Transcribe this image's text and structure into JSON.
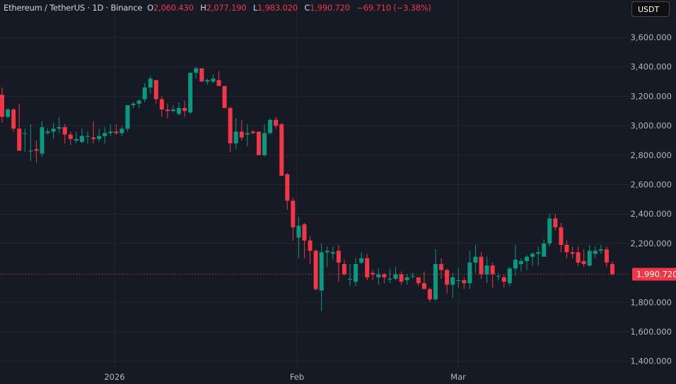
{
  "header": {
    "symbol": "Ethereum / TetherUS",
    "interval": "1D",
    "exchange": "Binance",
    "title": "Ethereum / TetherUS · 1D · Binance",
    "open_label": "O",
    "open": "2,060.430",
    "high_label": "H",
    "high": "2,077.190",
    "low_label": "L",
    "low": "1,983.020",
    "close_label": "C",
    "close": "1,990.720",
    "change": "−69.710 (−3.38%)"
  },
  "currency_button": "USDT",
  "last_price_label": "1,990.720",
  "colors": {
    "up": "#089981",
    "down": "#f23645",
    "background": "#161a25",
    "grid": "#232733",
    "text": "#b2b5be"
  },
  "chart_data": {
    "type": "candlestick",
    "title": "Ethereum / TetherUS · 1D · Binance",
    "xlabel": "",
    "ylabel": "USDT",
    "ylim": [
      1350,
      3700
    ],
    "yticks": [
      3600,
      3400,
      3200,
      3000,
      2800,
      2600,
      2400,
      2200,
      1800,
      1600,
      1400
    ],
    "ytick_labels": [
      "3,600.000",
      "3,400.000",
      "3,200.000",
      "3,000.000",
      "2,800.000",
      "2,600.000",
      "2,400.000",
      "2,200.000",
      "1,800.000",
      "1,600.000",
      "1,400.000"
    ],
    "xticks": [
      {
        "label": "2026",
        "x": 162
      },
      {
        "label": "Feb",
        "x": 420
      },
      {
        "label": "Mar",
        "x": 648
      }
    ],
    "last_price": 1990.72,
    "candles": [
      [
        3210,
        3260,
        3020,
        3060
      ],
      [
        3060,
        3120,
        3050,
        3110
      ],
      [
        3110,
        3120,
        2960,
        2980
      ],
      [
        2980,
        3150,
        2860,
        2830
      ],
      [
        2950,
        2980,
        2820,
        2950
      ],
      [
        2830,
        3010,
        2760,
        2830
      ],
      [
        2840,
        2900,
        2750,
        2830
      ],
      [
        2810,
        3030,
        2790,
        2990
      ],
      [
        2950,
        2980,
        2940,
        2960
      ],
      [
        2960,
        3020,
        2910,
        2980
      ],
      [
        2980,
        3060,
        2950,
        2990
      ],
      [
        2990,
        3010,
        2880,
        2940
      ],
      [
        2940,
        2960,
        2870,
        2910
      ],
      [
        2900,
        2960,
        2880,
        2910
      ],
      [
        2890,
        2980,
        2880,
        2930
      ],
      [
        2930,
        2960,
        2880,
        2930
      ],
      [
        2920,
        3030,
        2880,
        2910
      ],
      [
        2910,
        2980,
        2890,
        2930
      ],
      [
        2930,
        2990,
        2880,
        2950
      ],
      [
        2950,
        3010,
        2930,
        2960
      ],
      [
        2960,
        3010,
        2940,
        2950
      ],
      [
        2950,
        3000,
        2930,
        2980
      ],
      [
        2980,
        3050,
        2960,
        3140
      ],
      [
        3140,
        3160,
        3120,
        3150
      ],
      [
        3150,
        3180,
        3120,
        3170
      ],
      [
        3180,
        3290,
        3160,
        3260
      ],
      [
        3260,
        3340,
        3220,
        3320
      ],
      [
        3310,
        3300,
        3150,
        3180
      ],
      [
        3180,
        3200,
        3060,
        3110
      ],
      [
        3110,
        3150,
        3050,
        3100
      ],
      [
        3100,
        3140,
        3090,
        3110
      ],
      [
        3080,
        3160,
        3070,
        3120
      ],
      [
        3120,
        3170,
        3060,
        3100
      ],
      [
        3090,
        3360,
        3080,
        3360
      ],
      [
        3360,
        3400,
        3320,
        3390
      ],
      [
        3390,
        3380,
        3300,
        3300
      ],
      [
        3300,
        3320,
        3280,
        3310
      ],
      [
        3300,
        3350,
        3290,
        3320
      ],
      [
        3310,
        3370,
        3290,
        3270
      ],
      [
        3270,
        3270,
        3120,
        3120
      ],
      [
        3120,
        3130,
        2820,
        2880
      ],
      [
        2880,
        3050,
        2840,
        2960
      ],
      [
        2960,
        3040,
        2900,
        2920
      ],
      [
        2940,
        3010,
        2860,
        2950
      ],
      [
        2960,
        2970,
        2940,
        2950
      ],
      [
        2960,
        2950,
        2810,
        2800
      ],
      [
        2800,
        3010,
        2790,
        2950
      ],
      [
        2950,
        3050,
        2940,
        3040
      ],
      [
        3040,
        3060,
        2980,
        3000
      ],
      [
        3010,
        3020,
        2660,
        2660
      ],
      [
        2670,
        2680,
        2430,
        2490
      ],
      [
        2490,
        2510,
        2220,
        2310
      ],
      [
        2240,
        2380,
        2100,
        2320
      ],
      [
        2330,
        2340,
        2100,
        2220
      ],
      [
        2220,
        2250,
        2060,
        2150
      ],
      [
        2150,
        2160,
        1880,
        1890
      ],
      [
        1880,
        2200,
        1740,
        2140
      ],
      [
        2140,
        2180,
        2040,
        2150
      ],
      [
        2130,
        2180,
        2090,
        2140
      ],
      [
        2150,
        2190,
        1940,
        2070
      ],
      [
        2060,
        2090,
        1980,
        1990
      ],
      [
        1960,
        2060,
        1910,
        1960
      ],
      [
        1940,
        2100,
        1910,
        2060
      ],
      [
        2070,
        2140,
        2060,
        2100
      ],
      [
        2100,
        2130,
        1950,
        1970
      ],
      [
        2000,
        2020,
        1950,
        1990
      ],
      [
        1970,
        2030,
        1920,
        1990
      ],
      [
        1990,
        2000,
        1930,
        1970
      ],
      [
        1960,
        2030,
        1930,
        1960
      ],
      [
        1960,
        2040,
        1950,
        1990
      ],
      [
        1990,
        2010,
        1920,
        1940
      ],
      [
        1950,
        1990,
        1920,
        1970
      ],
      [
        1980,
        2000,
        1960,
        1980
      ],
      [
        1970,
        1970,
        1910,
        1930
      ],
      [
        1930,
        2010,
        1890,
        1890
      ],
      [
        1890,
        1900,
        1800,
        1820
      ],
      [
        1820,
        2160,
        1810,
        2060
      ],
      [
        2060,
        2100,
        1960,
        2020
      ],
      [
        2020,
        2030,
        1860,
        1920
      ],
      [
        1920,
        2000,
        1830,
        1970
      ],
      [
        1950,
        2030,
        1900,
        1950
      ],
      [
        1950,
        1970,
        1890,
        1930
      ],
      [
        1930,
        2150,
        1890,
        2070
      ],
      [
        2070,
        2190,
        2000,
        2110
      ],
      [
        2110,
        2140,
        1960,
        1990
      ],
      [
        1990,
        2110,
        1930,
        2050
      ],
      [
        2050,
        2070,
        1900,
        1990
      ],
      [
        1980,
        2000,
        1950,
        1980
      ],
      [
        1970,
        1990,
        1900,
        1940
      ],
      [
        1930,
        2040,
        1910,
        2030
      ],
      [
        2030,
        2190,
        1980,
        2090
      ],
      [
        2060,
        2100,
        2010,
        2080
      ],
      [
        2080,
        2120,
        2020,
        2110
      ],
      [
        2110,
        2140,
        2050,
        2130
      ],
      [
        2130,
        2180,
        2050,
        2140
      ],
      [
        2110,
        2230,
        2110,
        2200
      ],
      [
        2200,
        2400,
        2180,
        2370
      ],
      [
        2370,
        2400,
        2290,
        2310
      ],
      [
        2310,
        2340,
        2140,
        2190
      ],
      [
        2190,
        2220,
        2100,
        2140
      ],
      [
        2140,
        2180,
        2100,
        2130
      ],
      [
        2140,
        2180,
        2050,
        2070
      ],
      [
        2080,
        2160,
        2040,
        2060
      ],
      [
        2050,
        2190,
        2040,
        2150
      ],
      [
        2130,
        2180,
        2100,
        2150
      ],
      [
        2150,
        2190,
        2130,
        2160
      ],
      [
        2160,
        2180,
        2040,
        2070
      ],
      [
        2060,
        2077,
        1983,
        1991
      ]
    ]
  }
}
